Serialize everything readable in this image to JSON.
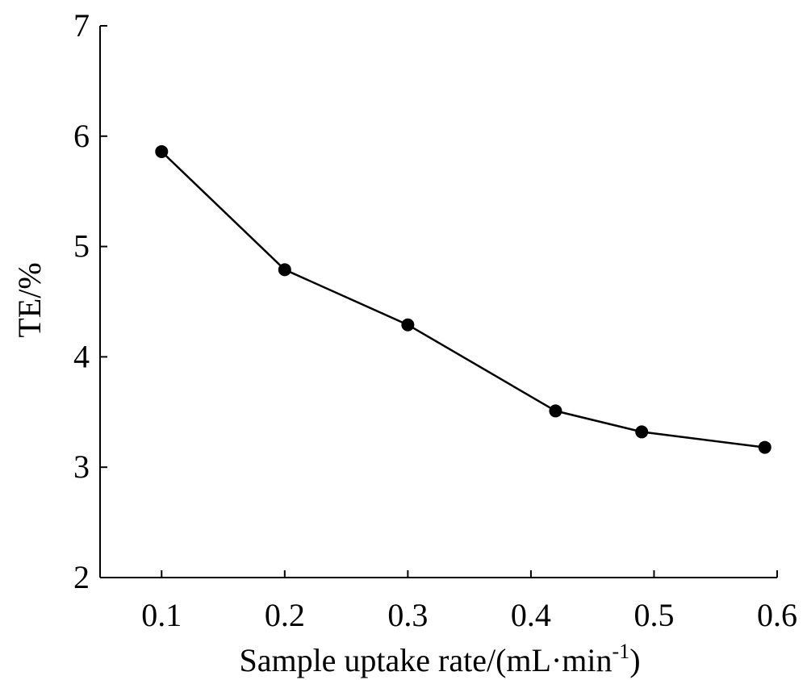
{
  "chart_data": {
    "type": "line",
    "title": "",
    "xlabel": "Sample uptake rate/(mL·min",
    "xlabel_sup": "-1",
    "xlabel_close": ")",
    "ylabel": "TE/%",
    "xlim": [
      0.05,
      0.6
    ],
    "ylim": [
      2,
      7
    ],
    "xticks": [
      0.1,
      0.2,
      0.3,
      0.4,
      0.5,
      0.6
    ],
    "xtick_labels": [
      "0.1",
      "0.2",
      "0.3",
      "0.4",
      "0.5",
      "0.6"
    ],
    "yticks": [
      2,
      3,
      4,
      5,
      6,
      7
    ],
    "ytick_labels": [
      "2",
      "3",
      "4",
      "5",
      "6",
      "7"
    ],
    "grid": false,
    "series": [
      {
        "x": [
          0.1,
          0.2,
          0.3,
          0.42,
          0.49,
          0.59
        ],
        "values": [
          5.86,
          4.79,
          4.29,
          3.51,
          3.32,
          3.18
        ],
        "color": "#000000",
        "marker": "circle"
      }
    ]
  }
}
